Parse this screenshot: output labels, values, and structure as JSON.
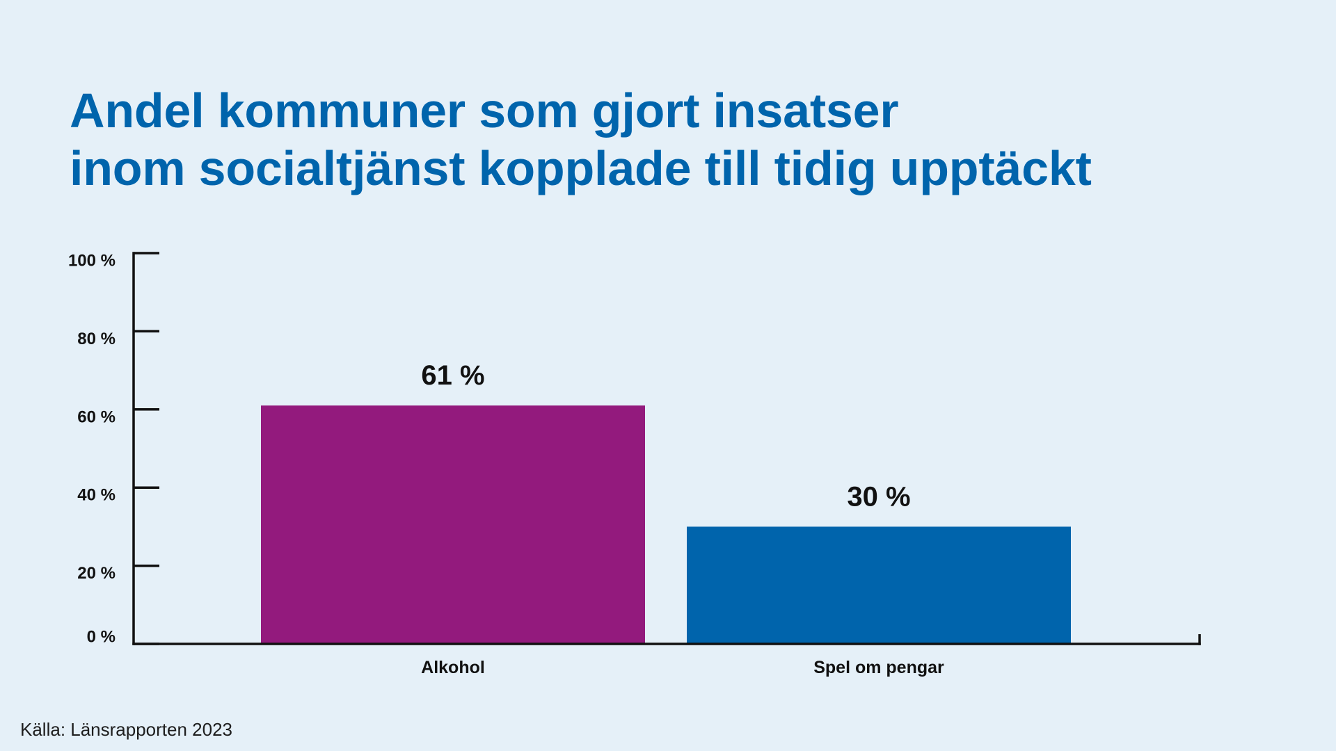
{
  "colors": {
    "background": "#E5F0F8",
    "title": "#0064AC",
    "axis": "#111111",
    "text": "#111111"
  },
  "chart_data": {
    "type": "bar",
    "title": [
      "Andel kommuner som gjort insatser",
      "inom socialtjänst kopplade till tidig upptäckt"
    ],
    "categories": [
      "Alkohol",
      "Spel om pengar"
    ],
    "values": [
      61,
      30
    ],
    "value_labels": [
      "61 %",
      "30 %"
    ],
    "bar_colors": [
      "#931A7D",
      "#0064AC"
    ],
    "xlabel": "",
    "ylabel": "",
    "ylim": [
      0,
      100
    ],
    "yticks": [
      0,
      20,
      40,
      60,
      80,
      100
    ],
    "ytick_labels": [
      "0 %",
      "20 %",
      "40 %",
      "60 %",
      "80 %",
      "100 %"
    ],
    "grid": false,
    "legend": "none",
    "source": "Källa: Länsrapporten 2023"
  }
}
